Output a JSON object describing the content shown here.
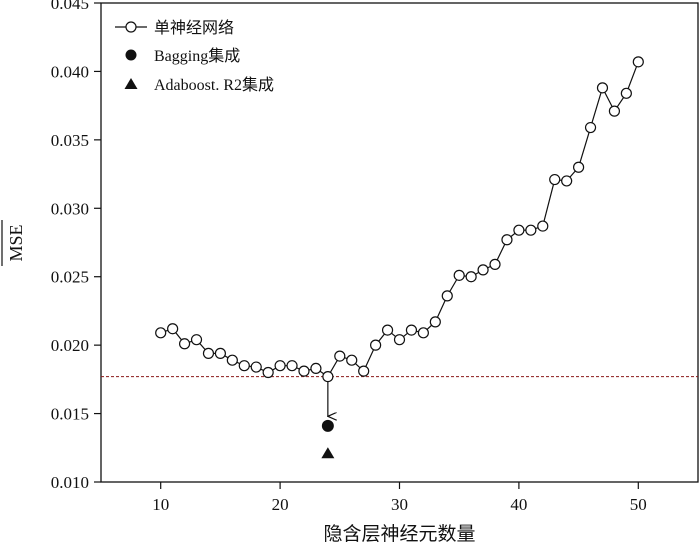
{
  "chart_data": {
    "type": "line",
    "xlabel": "隐含层神经元数量",
    "ylabel": "MSE",
    "xlim": [
      5,
      55
    ],
    "ylim": [
      0.01,
      0.045
    ],
    "xticks": [
      10,
      20,
      30,
      40,
      50
    ],
    "xtick_labels": [
      "10",
      "20",
      "30",
      "40",
      "50"
    ],
    "yticks": [
      0.01,
      0.015,
      0.02,
      0.025,
      0.03,
      0.035,
      0.04,
      0.045
    ],
    "ytick_labels": [
      "0.010",
      "0.015",
      "0.020",
      "0.025",
      "0.030",
      "0.035",
      "0.040",
      "0.045"
    ],
    "legend_position": "top-left",
    "grid": false,
    "series": [
      {
        "name": "单神经网络",
        "marker": "open-circle",
        "x": [
          10,
          11,
          12,
          13,
          14,
          15,
          16,
          17,
          18,
          19,
          20,
          21,
          22,
          23,
          24,
          25,
          26,
          27,
          28,
          29,
          30,
          31,
          32,
          33,
          34,
          35,
          36,
          37,
          38,
          39,
          40,
          41,
          42,
          43,
          44,
          45,
          46,
          47,
          48,
          49,
          50
        ],
        "y": [
          0.0209,
          0.0212,
          0.0201,
          0.0204,
          0.0194,
          0.0194,
          0.0189,
          0.0185,
          0.0184,
          0.018,
          0.0185,
          0.0185,
          0.0181,
          0.0183,
          0.0177,
          0.0192,
          0.0189,
          0.0181,
          0.02,
          0.0211,
          0.0204,
          0.0211,
          0.0209,
          0.0217,
          0.0236,
          0.0251,
          0.025,
          0.0255,
          0.0259,
          0.0277,
          0.0284,
          0.0284,
          0.0287,
          0.0321,
          0.032,
          0.033,
          0.0359,
          0.0388,
          0.0371,
          0.0384,
          0.0407
        ]
      },
      {
        "name": "Bagging集成",
        "marker": "filled-circle",
        "x": [
          24
        ],
        "y": [
          0.0141
        ]
      },
      {
        "name": "Adaboost. R2集成",
        "marker": "filled-triangle",
        "x": [
          24
        ],
        "y": [
          0.0121
        ]
      }
    ],
    "reference_line": {
      "y": 0.0177,
      "style": "dashed",
      "color": "#8b1a1a"
    },
    "arrow": {
      "x": 24,
      "from_y": 0.0177,
      "to_y": 0.0148
    }
  }
}
